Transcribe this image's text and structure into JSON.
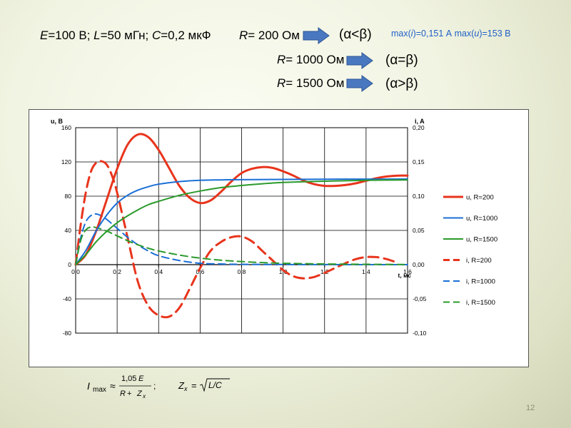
{
  "header": {
    "params": {
      "E_sym": "E",
      "E_val": "=100 В; ",
      "L_sym": "L",
      "L_val": "=50 мГн; ",
      "C_sym": "C",
      "C_val": "=0,2 мкФ"
    },
    "max_info": {
      "i_part": "max(",
      "i_sym": "i",
      "i_val": ")=0,151 А  max(",
      "u_sym": "u",
      "u_val": ")=153 В"
    },
    "cases": [
      {
        "R_sym": "R",
        "R_val": "= 200 Ом",
        "condition": "(α<β)"
      },
      {
        "R_sym": "R",
        "R_val": "= 1000 Ом",
        "condition": "(α=β)"
      },
      {
        "R_sym": "R",
        "R_val": "= 1500 Ом",
        "condition": "(α>β)"
      }
    ]
  },
  "colors": {
    "red": "#e8341c",
    "blue": "#1a6fd6",
    "green": "#2a9a2a",
    "arrow_fill": "#4a78c0",
    "arrow_stroke": "#2c5596",
    "max_text": "#2060c8"
  },
  "chart_data": {
    "type": "line",
    "xlabel": "t, мс",
    "ylabel_left": "u, B",
    "ylabel_right": "i, A",
    "xlim": [
      0,
      1.6
    ],
    "ylim_left": [
      -80,
      160
    ],
    "ylim_right": [
      -0.1,
      0.2
    ],
    "grid": true,
    "legend_position": "right",
    "x_ticks": [
      "0,0",
      "0,2",
      "0,4",
      "0,6",
      "0,8",
      "1,0",
      "1,2",
      "1,4",
      "1,6"
    ],
    "y_ticks_left": [
      "-80",
      "-40",
      "0",
      "40",
      "80",
      "120",
      "160"
    ],
    "y_ticks_right": [
      "-0,10",
      "-0,05",
      "0,00",
      "0,05",
      "0,10",
      "0,15",
      "0,20"
    ],
    "series": [
      {
        "name": "u, R=200",
        "axis": "left",
        "dash": false,
        "color": "#e8341c",
        "x": [
          0,
          0.05,
          0.1,
          0.15,
          0.2,
          0.25,
          0.3,
          0.35,
          0.4,
          0.45,
          0.5,
          0.55,
          0.6,
          0.65,
          0.7,
          0.75,
          0.8,
          0.85,
          0.9,
          0.95,
          1.0,
          1.05,
          1.1,
          1.15,
          1.2,
          1.25,
          1.3,
          1.35,
          1.4,
          1.45,
          1.5,
          1.55,
          1.6
        ],
        "y": [
          0,
          12,
          40,
          76,
          112,
          140,
          152,
          149,
          134,
          113,
          92,
          78,
          72,
          75,
          85,
          97,
          107,
          112,
          114,
          113,
          109,
          104,
          98,
          94,
          92,
          92,
          93,
          95,
          98,
          101,
          103,
          104,
          104
        ]
      },
      {
        "name": "u, R=1000",
        "axis": "left",
        "dash": false,
        "color": "#1a6fd6",
        "x": [
          0,
          0.05,
          0.1,
          0.15,
          0.2,
          0.25,
          0.3,
          0.35,
          0.4,
          0.5,
          0.6,
          0.7,
          0.8,
          1.0,
          1.2,
          1.4,
          1.6
        ],
        "y": [
          0,
          17,
          40,
          58,
          72,
          81,
          87,
          91,
          94,
          97,
          98.5,
          99,
          99.3,
          99.6,
          99.8,
          99.9,
          100
        ]
      },
      {
        "name": "u, R=1500",
        "axis": "left",
        "dash": false,
        "color": "#2a9a2a",
        "x": [
          0,
          0.05,
          0.1,
          0.15,
          0.2,
          0.25,
          0.3,
          0.35,
          0.4,
          0.5,
          0.6,
          0.7,
          0.8,
          0.9,
          1.0,
          1.2,
          1.4,
          1.6
        ],
        "y": [
          0,
          12,
          27,
          39,
          49,
          57,
          64,
          70,
          74,
          81,
          86,
          90,
          92.5,
          94.5,
          96,
          97.5,
          98.5,
          99
        ]
      },
      {
        "name": "i, R=200",
        "axis": "right",
        "dash": true,
        "color": "#e8341c",
        "x": [
          0,
          0.025,
          0.05,
          0.075,
          0.1,
          0.125,
          0.15,
          0.175,
          0.2,
          0.25,
          0.3,
          0.35,
          0.4,
          0.45,
          0.5,
          0.55,
          0.6,
          0.65,
          0.7,
          0.75,
          0.8,
          0.85,
          0.9,
          0.95,
          1.0,
          1.05,
          1.1,
          1.15,
          1.2,
          1.25,
          1.3,
          1.35,
          1.4,
          1.45,
          1.5,
          1.55
        ],
        "y": [
          0,
          0.06,
          0.107,
          0.137,
          0.149,
          0.151,
          0.146,
          0.13,
          0.105,
          0.04,
          -0.025,
          -0.06,
          -0.074,
          -0.076,
          -0.063,
          -0.035,
          -0.005,
          0.02,
          0.033,
          0.04,
          0.041,
          0.034,
          0.02,
          0.006,
          -0.008,
          -0.017,
          -0.02,
          -0.018,
          -0.012,
          -0.005,
          0.002,
          0.008,
          0.011,
          0.011,
          0.008,
          0.003
        ]
      },
      {
        "name": "i, R=1000",
        "axis": "right",
        "dash": true,
        "color": "#1a6fd6",
        "x": [
          0,
          0.025,
          0.05,
          0.075,
          0.1,
          0.125,
          0.15,
          0.2,
          0.25,
          0.3,
          0.35,
          0.4,
          0.5,
          0.6,
          0.7,
          0.8,
          1.0,
          1.2,
          1.4,
          1.6
        ],
        "y": [
          0,
          0.04,
          0.063,
          0.072,
          0.074,
          0.071,
          0.066,
          0.053,
          0.04,
          0.029,
          0.02,
          0.013,
          0.006,
          0.002,
          0.001,
          0.0005,
          0.0002,
          0.0001,
          0,
          0
        ]
      },
      {
        "name": "i, R=1500",
        "axis": "right",
        "dash": true,
        "color": "#2a9a2a",
        "x": [
          0,
          0.025,
          0.05,
          0.075,
          0.1,
          0.15,
          0.2,
          0.25,
          0.3,
          0.35,
          0.4,
          0.5,
          0.6,
          0.7,
          0.8,
          0.9,
          1.0,
          1.2,
          1.4,
          1.6
        ],
        "y": [
          0,
          0.036,
          0.051,
          0.055,
          0.054,
          0.049,
          0.042,
          0.035,
          0.029,
          0.024,
          0.02,
          0.014,
          0.0095,
          0.0065,
          0.0045,
          0.003,
          0.002,
          0.001,
          0.0005,
          0.0002
        ]
      }
    ]
  },
  "formulas": {
    "imax_I": "I",
    "imax_sub": "max",
    "approx": "≈",
    "num_coef": "1,05",
    "num_E": "E",
    "den_R": "R",
    "den_plus": " + ",
    "den_Z": "Z",
    "den_sub": "x",
    "semicolon": ";",
    "zx_Z": "Z",
    "zx_sub": "x",
    "zx_eq": "=",
    "zx_rad": "L/C"
  },
  "page_number": "12"
}
